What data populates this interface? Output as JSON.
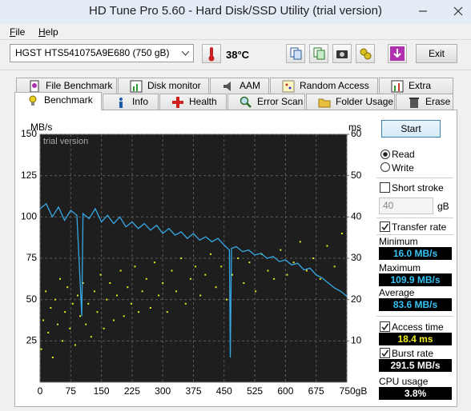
{
  "window": {
    "title": "HD Tune Pro 5.60 - Hard Disk/SSD Utility (trial version)"
  },
  "menu": [
    "File",
    "Help"
  ],
  "toolbar": {
    "drive": "HGST HTS541075A9E680 (750 gB)",
    "temperature": "38°C",
    "exit": "Exit"
  },
  "tabs": {
    "row1": [
      "File Benchmark",
      "Disk monitor",
      "AAM",
      "Random Access",
      "Extra tests"
    ],
    "row2": [
      "Benchmark",
      "Info",
      "Health",
      "Error Scan",
      "Folder Usage",
      "Erase"
    ]
  },
  "benchmark": {
    "chart_data": {
      "type": "line",
      "y_label": "MB/s",
      "y2_label": "ms",
      "watermark": "trial version",
      "xlim": [
        0,
        750
      ],
      "xticks": [
        0,
        75,
        150,
        225,
        300,
        375,
        450,
        525,
        600,
        675,
        {
          "value": 750,
          "label": "750gB"
        }
      ],
      "ylim": [
        0,
        150
      ],
      "yticks": [
        25,
        50,
        75,
        100,
        125,
        150
      ],
      "y2lim": [
        0,
        60
      ],
      "y2ticks": [
        10,
        20,
        30,
        40,
        50,
        60
      ],
      "grid": true,
      "background": "#1e1e1e",
      "series": [
        {
          "type": "line",
          "color": "#35a9e6",
          "x": [
            0,
            15,
            30,
            45,
            60,
            75,
            90,
            102,
            105,
            120,
            135,
            150,
            165,
            180,
            195,
            210,
            225,
            240,
            255,
            270,
            285,
            300,
            315,
            330,
            345,
            360,
            375,
            390,
            405,
            420,
            435,
            450,
            463,
            465,
            468,
            480,
            495,
            510,
            525,
            540,
            555,
            570,
            585,
            600,
            615,
            630,
            645,
            660,
            675,
            690,
            705,
            720,
            735,
            750
          ],
          "values": [
            105,
            108,
            100,
            106,
            98,
            104,
            101,
            40,
            102,
            99,
            105,
            97,
            101,
            96,
            100,
            94,
            97,
            93,
            96,
            92,
            95,
            90,
            93,
            89,
            91,
            87,
            90,
            86,
            88,
            85,
            87,
            83,
            80,
            15,
            81,
            82,
            79,
            80,
            77,
            78,
            75,
            76,
            73,
            74,
            71,
            72,
            68,
            69,
            65,
            63,
            60,
            57,
            55,
            52
          ]
        },
        {
          "type": "scatter",
          "axis": "y2",
          "color": "#e8e820",
          "x": [
            3,
            8,
            14,
            20,
            26,
            31,
            37,
            43,
            49,
            55,
            61,
            67,
            73,
            80,
            86,
            92,
            98,
            105,
            112,
            118,
            125,
            133,
            140,
            148,
            156,
            163,
            171,
            180,
            188,
            197,
            205,
            214,
            223,
            232,
            241,
            250,
            260,
            270,
            280,
            290,
            300,
            311,
            322,
            333,
            345,
            356,
            368,
            380,
            392,
            404,
            417,
            430,
            443,
            456,
            470,
            484,
            498,
            512,
            527,
            542,
            557,
            572,
            588,
            604,
            620,
            636,
            652,
            668,
            685,
            702,
            720,
            738
          ],
          "values": [
            8,
            15,
            22,
            12,
            18,
            6,
            20,
            14,
            25,
            10,
            17,
            23,
            13,
            19,
            9,
            21,
            16,
            24,
            14,
            19,
            11,
            22,
            17,
            26,
            13,
            20,
            24,
            15,
            21,
            27,
            16,
            23,
            19,
            28,
            17,
            22,
            25,
            18,
            29,
            21,
            24,
            17,
            27,
            22,
            30,
            19,
            25,
            28,
            21,
            26,
            31,
            23,
            28,
            20,
            26,
            30,
            24,
            29,
            22,
            31,
            27,
            25,
            32,
            26,
            29,
            34,
            27,
            30,
            25,
            33,
            28,
            36
          ]
        }
      ]
    },
    "panel": {
      "start": "Start",
      "read": "Read",
      "write": "Write",
      "short_stroke": "Short stroke",
      "short_stroke_value": "40",
      "short_stroke_unit": "gB",
      "transfer_rate": "Transfer rate",
      "minimum": {
        "label": "Minimum",
        "value": "16.0 MB/s"
      },
      "maximum": {
        "label": "Maximum",
        "value": "109.9 MB/s"
      },
      "average": {
        "label": "Average",
        "value": "83.6 MB/s"
      },
      "access_time": {
        "label": "Access time",
        "value": "18.4 ms"
      },
      "burst_rate": {
        "label": "Burst rate",
        "value": "291.5 MB/s"
      },
      "cpu_usage": {
        "label": "CPU usage",
        "value": "3.8%"
      }
    }
  }
}
